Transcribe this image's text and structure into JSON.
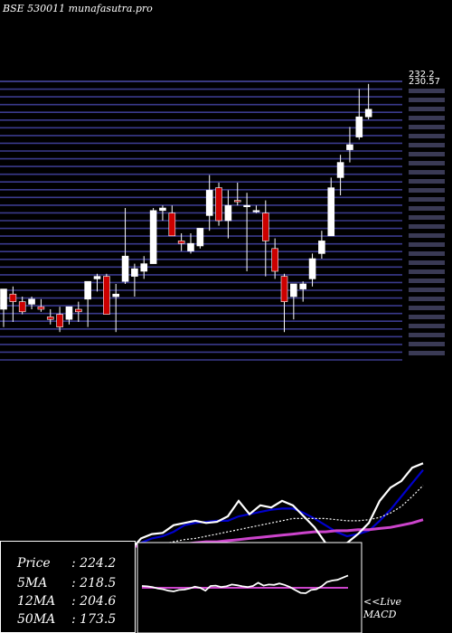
{
  "header": {
    "title": "BSE 530011 munafasutra.pro"
  },
  "summary": [
    {
      "label": "Price",
      "value": "224.2"
    },
    {
      "label": "5MA",
      "value": "218.5"
    },
    {
      "label": "12MA",
      "value": "204.6"
    },
    {
      "label": "50MA",
      "value": "173.5"
    }
  ],
  "macd_label": {
    "line1": "<<Live",
    "line2": "MACD"
  },
  "colors": {
    "up_fill": "#ffffff",
    "down_fill": "#cc0000",
    "grid": "#3a3a8c",
    "ma_short": "#0000cc",
    "ma_long": "#cc44cc",
    "price_line": "#ffffff"
  },
  "chart_data": [
    {
      "type": "candlestick",
      "ylim": [
        125,
        235
      ],
      "tick_labels_top": [
        "232.2",
        "230.57"
      ],
      "candles": [
        {
          "o": 145,
          "h": 152,
          "l": 138,
          "c": 153,
          "up": true
        },
        {
          "o": 148,
          "h": 154,
          "l": 140,
          "c": 151,
          "up": false
        },
        {
          "o": 148,
          "h": 150,
          "l": 143,
          "c": 144,
          "up": false
        },
        {
          "o": 147,
          "h": 150,
          "l": 145,
          "c": 149,
          "up": true
        },
        {
          "o": 146,
          "h": 149,
          "l": 144,
          "c": 145,
          "up": false
        },
        {
          "o": 141,
          "h": 145,
          "l": 139,
          "c": 142,
          "up": false
        },
        {
          "o": 143,
          "h": 146,
          "l": 136,
          "c": 138,
          "up": false
        },
        {
          "o": 141,
          "h": 146,
          "l": 139,
          "c": 146,
          "up": true
        },
        {
          "o": 145,
          "h": 148,
          "l": 140,
          "c": 144,
          "up": false
        },
        {
          "o": 149,
          "h": 156,
          "l": 138,
          "c": 156,
          "up": true
        },
        {
          "o": 157,
          "h": 159,
          "l": 152,
          "c": 158,
          "up": true
        },
        {
          "o": 158,
          "h": 159,
          "l": 143,
          "c": 143,
          "up": false
        },
        {
          "o": 150,
          "h": 155,
          "l": 136,
          "c": 151,
          "up": true
        },
        {
          "o": 156,
          "h": 185,
          "l": 155,
          "c": 166,
          "up": true
        },
        {
          "o": 158,
          "h": 163,
          "l": 150,
          "c": 161,
          "up": true
        },
        {
          "o": 160,
          "h": 166,
          "l": 157,
          "c": 163,
          "up": true
        },
        {
          "o": 163,
          "h": 185,
          "l": 163,
          "c": 184,
          "up": true
        },
        {
          "o": 184,
          "h": 186,
          "l": 180,
          "c": 185,
          "up": true
        },
        {
          "o": 183,
          "h": 186,
          "l": 175,
          "c": 174,
          "up": false
        },
        {
          "o": 172,
          "h": 175,
          "l": 168,
          "c": 171,
          "up": false
        },
        {
          "o": 168,
          "h": 175,
          "l": 167,
          "c": 171,
          "up": true
        },
        {
          "o": 170,
          "h": 177,
          "l": 169,
          "c": 177,
          "up": true
        },
        {
          "o": 182,
          "h": 198,
          "l": 176,
          "c": 192,
          "up": true
        },
        {
          "o": 193,
          "h": 195,
          "l": 178,
          "c": 180,
          "up": false
        },
        {
          "o": 180,
          "h": 192,
          "l": 173,
          "c": 186,
          "up": true
        },
        {
          "o": 188,
          "h": 195,
          "l": 186,
          "c": 188,
          "up": false
        },
        {
          "o": 186,
          "h": 191,
          "l": 160,
          "c": 186,
          "up": true
        },
        {
          "o": 184,
          "h": 186,
          "l": 183,
          "c": 184,
          "up": true
        },
        {
          "o": 183,
          "h": 188,
          "l": 158,
          "c": 172,
          "up": false
        },
        {
          "o": 169,
          "h": 173,
          "l": 157,
          "c": 160,
          "up": false
        },
        {
          "o": 158,
          "h": 159,
          "l": 136,
          "c": 148,
          "up": false
        },
        {
          "o": 150,
          "h": 155,
          "l": 141,
          "c": 155,
          "up": true
        },
        {
          "o": 153,
          "h": 156,
          "l": 148,
          "c": 155,
          "up": true
        },
        {
          "o": 157,
          "h": 167,
          "l": 154,
          "c": 165,
          "up": true
        },
        {
          "o": 167,
          "h": 176,
          "l": 165,
          "c": 172,
          "up": true
        },
        {
          "o": 174,
          "h": 197,
          "l": 174,
          "c": 193,
          "up": true
        },
        {
          "o": 197,
          "h": 206,
          "l": 190,
          "c": 203,
          "up": true
        },
        {
          "o": 208,
          "h": 217,
          "l": 203,
          "c": 210,
          "up": true
        },
        {
          "o": 213,
          "h": 232,
          "l": 212,
          "c": 221,
          "up": true
        },
        {
          "o": 221,
          "h": 234,
          "l": 220,
          "c": 224,
          "up": true
        }
      ]
    },
    {
      "type": "line",
      "x": [
        1,
        2,
        3,
        4,
        5,
        6,
        7,
        8,
        9,
        10,
        11,
        12,
        13,
        14,
        15,
        16,
        17,
        18,
        19,
        20,
        21,
        22,
        23,
        24,
        25,
        26,
        27,
        28,
        29,
        30,
        31,
        32,
        33,
        34,
        35,
        36,
        37,
        38,
        39,
        40
      ],
      "series": [
        {
          "values": [
            150,
            150,
            149,
            148,
            147,
            145,
            144,
            144,
            144,
            146,
            148,
            148,
            148,
            152,
            156,
            158,
            162,
            168,
            170,
            171,
            172,
            172,
            176,
            178,
            180,
            182,
            183,
            183,
            179,
            174,
            168,
            162,
            158,
            160,
            163,
            172,
            182,
            194,
            206,
            218
          ]
        },
        {
          "values": [
            150,
            150,
            149,
            148,
            148,
            147,
            146,
            146,
            146,
            146,
            146,
            147,
            148,
            149,
            150,
            151,
            153,
            155,
            156,
            158,
            160,
            162,
            164,
            166,
            168,
            170,
            172,
            174,
            174,
            174,
            174,
            173,
            172,
            172,
            173,
            175,
            179,
            185,
            194,
            204
          ]
        },
        {
          "values": [
            150,
            150,
            150,
            150,
            150,
            150,
            149,
            149,
            149,
            149,
            149,
            149,
            149,
            149,
            150,
            150,
            151,
            151,
            152,
            153,
            153,
            154,
            155,
            156,
            157,
            158,
            159,
            160,
            161,
            162,
            162,
            163,
            163,
            164,
            164,
            165,
            166,
            168,
            170,
            173
          ]
        },
        {
          "values": [
            146,
            147,
            146,
            145,
            144,
            143,
            142,
            141,
            142,
            146,
            150,
            148,
            145,
            156,
            160,
            161,
            168,
            170,
            172,
            170,
            171,
            176,
            190,
            178,
            186,
            184,
            190,
            186,
            176,
            166,
            152,
            150,
            152,
            160,
            170,
            190,
            202,
            208,
            220,
            224
          ]
        }
      ]
    },
    {
      "type": "line",
      "x": [
        1,
        2,
        3,
        4,
        5,
        6,
        7,
        8,
        9,
        10,
        11,
        12,
        13,
        14,
        15,
        16,
        17,
        18,
        19,
        20,
        21,
        22,
        23,
        24,
        25,
        26,
        27,
        28,
        29,
        30,
        31,
        32,
        33,
        34,
        35,
        36,
        37,
        38,
        39,
        40
      ],
      "series": [
        {
          "values": [
            0,
            0,
            0,
            0,
            0,
            0,
            0,
            0,
            0,
            0,
            0,
            0,
            0,
            0,
            0,
            0,
            0,
            0,
            0,
            0,
            0,
            0,
            0,
            0,
            0,
            0,
            0,
            0,
            0,
            0,
            0,
            0,
            0,
            0,
            0,
            0,
            0,
            0,
            0,
            0
          ]
        },
        {
          "values": [
            0.5,
            0.4,
            0.2,
            -0.2,
            -0.4,
            -0.8,
            -1.0,
            -0.6,
            -0.5,
            -0.2,
            0.3,
            0.0,
            -0.8,
            0.5,
            0.6,
            0.2,
            0.4,
            0.9,
            0.7,
            0.4,
            0.2,
            0.5,
            1.4,
            0.6,
            0.9,
            0.8,
            1.2,
            0.8,
            0.2,
            -0.6,
            -1.4,
            -1.5,
            -0.6,
            -0.4,
            0.4,
            1.6,
            2.0,
            2.2,
            2.8,
            3.4
          ]
        }
      ]
    }
  ]
}
